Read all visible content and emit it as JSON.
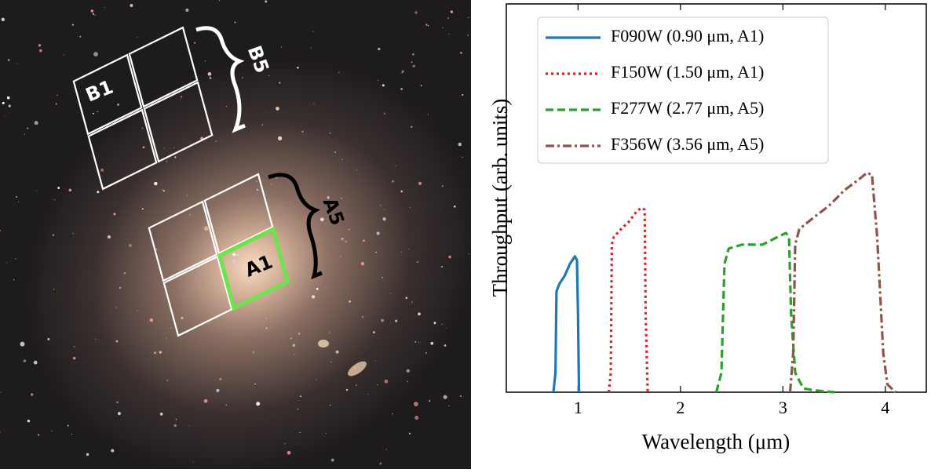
{
  "image": {
    "labels": {
      "b1": "B1",
      "b5": "B5",
      "a5": "A5",
      "a1": "A1"
    }
  },
  "chart_data": {
    "type": "line",
    "xlabel": "Wavelength (μm)",
    "ylabel": "Throughput (arb. units)",
    "xlim": [
      0.3,
      4.4
    ],
    "ylim": [
      0,
      1
    ],
    "xticks": [
      1,
      2,
      3,
      4
    ],
    "legend": "upper left",
    "series": [
      {
        "name": "F090W (0.90 μm, A1)",
        "color": "#1f77b4",
        "linestyle": "solid",
        "x": [
          0.76,
          0.78,
          0.79,
          0.82,
          0.87,
          0.92,
          0.97,
          0.99,
          1.0,
          1.01
        ],
        "values": [
          0,
          0.05,
          0.26,
          0.28,
          0.3,
          0.33,
          0.35,
          0.34,
          0.2,
          0
        ]
      },
      {
        "name": "F150W (1.50 μm, A1)",
        "color": "#d62728",
        "linestyle": "dotted",
        "x": [
          1.3,
          1.32,
          1.33,
          1.35,
          1.42,
          1.5,
          1.57,
          1.62,
          1.65,
          1.66,
          1.68
        ],
        "values": [
          0,
          0.05,
          0.38,
          0.4,
          0.42,
          0.44,
          0.465,
          0.475,
          0.47,
          0.2,
          0
        ]
      },
      {
        "name": "F277W (2.77 μm, A5)",
        "color": "#2ca02c",
        "linestyle": "dashed",
        "x": [
          2.35,
          2.4,
          2.43,
          2.47,
          2.6,
          2.8,
          2.95,
          3.03,
          3.06,
          3.08,
          3.12,
          3.2,
          3.3,
          3.5
        ],
        "values": [
          0,
          0.05,
          0.33,
          0.37,
          0.38,
          0.38,
          0.4,
          0.41,
          0.4,
          0.2,
          0.05,
          0.01,
          0.005,
          0
        ]
      },
      {
        "name": "F356W (3.56 μm, A5)",
        "color": "#8c564b",
        "linestyle": "dashdot",
        "x": [
          3.07,
          3.1,
          3.12,
          3.16,
          3.3,
          3.45,
          3.6,
          3.75,
          3.82,
          3.87,
          3.92,
          3.98,
          4.02,
          4.1
        ],
        "values": [
          0,
          0.1,
          0.38,
          0.42,
          0.45,
          0.48,
          0.52,
          0.55,
          0.565,
          0.56,
          0.4,
          0.1,
          0.02,
          0
        ]
      }
    ]
  }
}
